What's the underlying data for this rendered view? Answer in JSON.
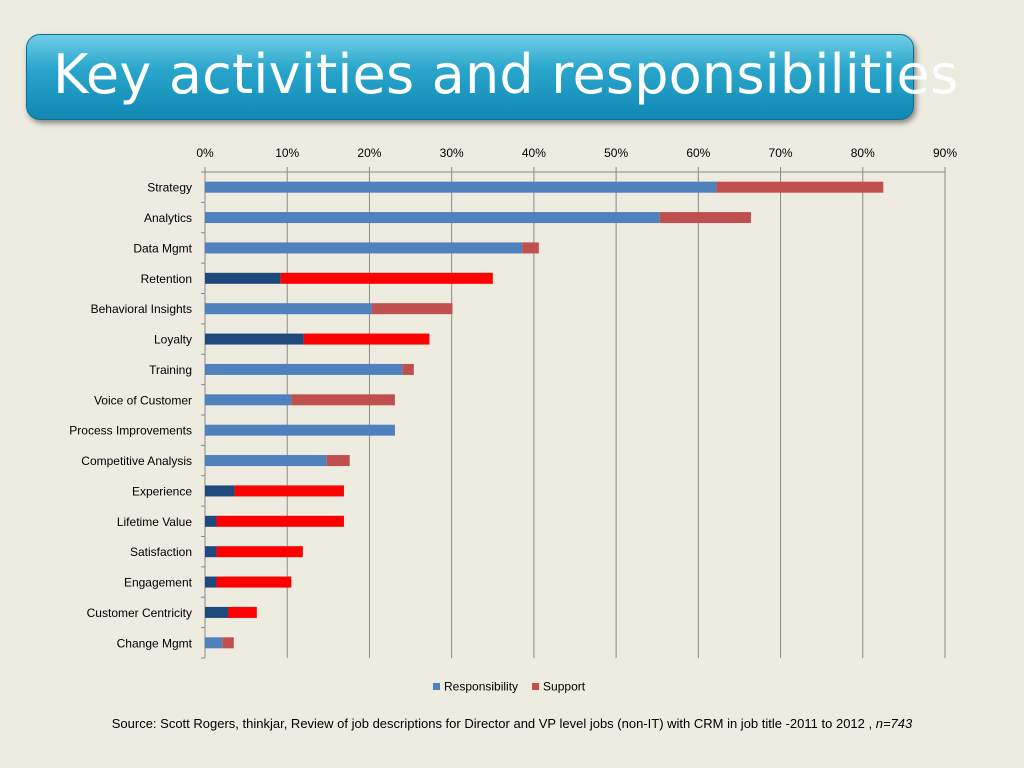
{
  "title": "Key activities and responsibilities",
  "source": {
    "text": "Source: Scott Rogers, thinkjar, Review of job descriptions for Director and VP level jobs (non-IT) with CRM in job title -2011 to 2012 ,",
    "n": "n=743"
  },
  "chart_data": {
    "type": "bar",
    "orientation": "horizontal",
    "stacked": true,
    "xlim": [
      0,
      90
    ],
    "x_ticks": [
      "0%",
      "10%",
      "20%",
      "30%",
      "40%",
      "50%",
      "60%",
      "70%",
      "80%",
      "90%"
    ],
    "x_axis_position": "top",
    "grid": true,
    "legend_position": "bottom",
    "categories": [
      "Strategy",
      "Analytics",
      "Data Mgmt",
      "Retention",
      "Behavioral Insights",
      "Loyalty",
      "Training",
      "Voice of Customer",
      "Process Improvements",
      "Competitive Analysis",
      "Experience",
      "Lifetime Value",
      "Satisfaction",
      "Engagement",
      "Customer Centricity",
      "Change Mgmt"
    ],
    "series": [
      {
        "name": "Responsibility",
        "color": "#4f81bd",
        "values": [
          62.2,
          55.3,
          38.6,
          9.2,
          20.3,
          12.0,
          24.0,
          10.5,
          23.1,
          14.8,
          3.6,
          1.4,
          1.4,
          1.4,
          2.8,
          2.1
        ]
      },
      {
        "name": "Support",
        "color": "#c0504d",
        "values": [
          20.3,
          11.1,
          2.0,
          25.8,
          9.8,
          15.3,
          1.4,
          12.6,
          0,
          2.8,
          13.3,
          15.5,
          10.5,
          9.1,
          3.5,
          1.4
        ]
      }
    ],
    "highlight_rows": {
      "categories": [
        "Retention",
        "Loyalty",
        "Experience",
        "Lifetime Value",
        "Satisfaction",
        "Engagement",
        "Customer Centricity"
      ],
      "responsibility_color": "#1f497d",
      "support_color": "#ff0000"
    }
  }
}
